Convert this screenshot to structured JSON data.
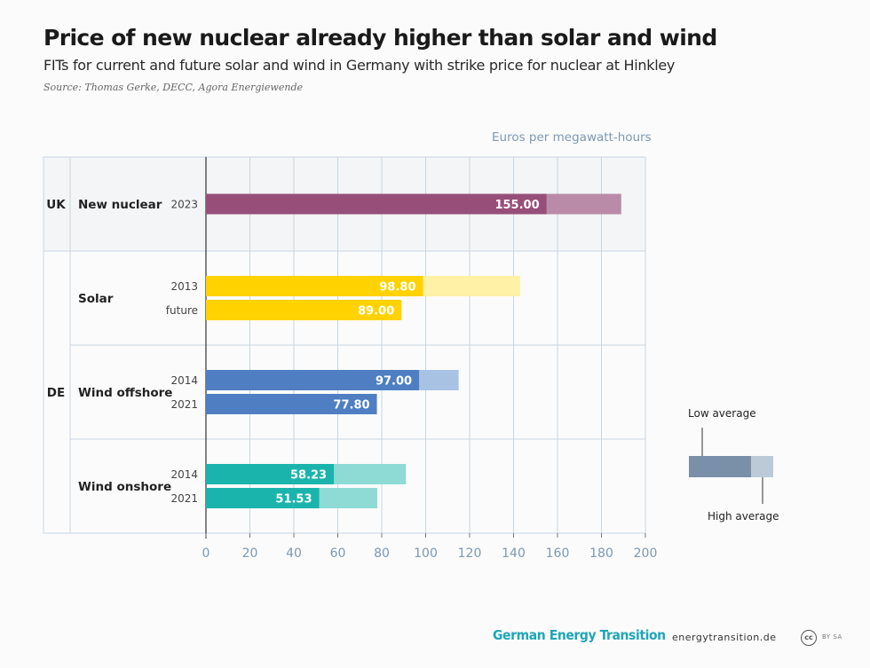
{
  "header": {
    "title": "Price of new nuclear already higher than solar and wind",
    "subtitle": "FITs for current and future solar and wind in Germany with strike price for nuclear at Hinkley",
    "source": "Source: Thomas Gerke, DECC, Agora Energiewende"
  },
  "footer": {
    "brand": "German Energy Transition",
    "site": "energytransition.de",
    "license_icon": "cc",
    "license_text": "BY SA"
  },
  "colors": {
    "nuclear": "#974f7a",
    "nuclear_light": "#b98ba8",
    "solar": "#ffd200",
    "solar_light": "#fff1a6",
    "wind_offshore": "#4f7fc2",
    "wind_offshore_light": "#a8c2e3",
    "wind_onshore": "#1ab4ad",
    "wind_onshore_light": "#8edbd6",
    "legend_low": "#7a8fa8",
    "legend_high": "#bccad8",
    "grid": "#c9d6e1",
    "axis_label": "#7c98b3"
  },
  "chart_data": {
    "type": "bar",
    "orientation": "horizontal",
    "unit_label": "Euros per megawatt-hours",
    "xlim": [
      0,
      200
    ],
    "xticks": [
      0,
      20,
      40,
      60,
      80,
      100,
      120,
      140,
      160,
      180,
      200
    ],
    "grid": true,
    "countries": [
      {
        "code": "UK",
        "categories": [
          {
            "name": "New nuclear",
            "rows": [
              {
                "label": "2023",
                "low": 155.0,
                "high": 189,
                "value_label": "155.00",
                "color_key": "nuclear"
              }
            ]
          }
        ]
      },
      {
        "code": "DE",
        "categories": [
          {
            "name": "Solar",
            "rows": [
              {
                "label": "2013",
                "low": 98.8,
                "high": 143,
                "value_label": "98.80",
                "color_key": "solar"
              },
              {
                "label": "future",
                "low": 89.0,
                "high": null,
                "value_label": "89.00",
                "color_key": "solar"
              }
            ]
          },
          {
            "name": "Wind offshore",
            "rows": [
              {
                "label": "2014",
                "low": 97.0,
                "high": 115,
                "value_label": "97.00",
                "color_key": "wind_offshore"
              },
              {
                "label": "2021",
                "low": 77.8,
                "high": null,
                "value_label": "77.80",
                "color_key": "wind_offshore"
              }
            ]
          },
          {
            "name": "Wind onshore",
            "rows": [
              {
                "label": "2014",
                "low": 58.23,
                "high": 91,
                "value_label": "58.23",
                "color_key": "wind_onshore"
              },
              {
                "label": "2021",
                "low": 51.53,
                "high": 78,
                "value_label": "51.53",
                "color_key": "wind_onshore"
              }
            ]
          }
        ]
      }
    ],
    "legend": {
      "low_label": "Low average",
      "high_label": "High average",
      "placement": "right"
    }
  }
}
